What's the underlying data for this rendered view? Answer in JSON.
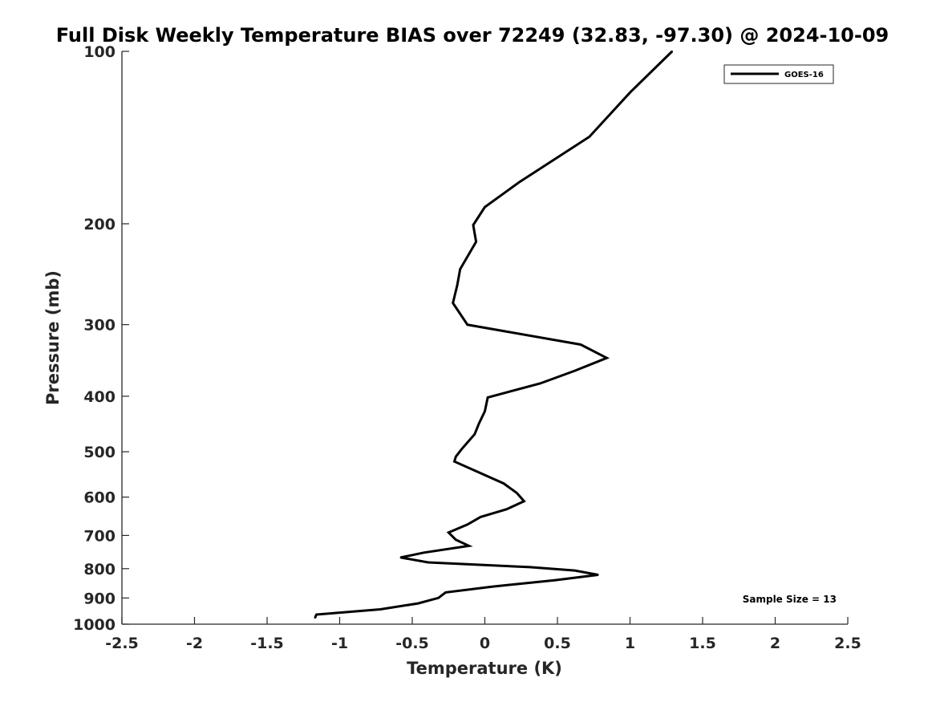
{
  "chart_data": {
    "type": "line",
    "title": "Full Disk Weekly Temperature BIAS over 72249 (32.83, -97.30) @ 2024-10-09",
    "xlabel": "Temperature (K)",
    "ylabel": "Pressure (mb)",
    "xlim": [
      -2.5,
      2.5
    ],
    "ylim": [
      100,
      1000
    ],
    "yscale": "log",
    "y_reversed": true,
    "grid": false,
    "x_ticks": [
      "-2.5",
      "-2",
      "-1.5",
      "-1",
      "-0.5",
      "0",
      "0.5",
      "1",
      "1.5",
      "2",
      "2.5"
    ],
    "y_ticks": [
      "100",
      "200",
      "300",
      "400",
      "500",
      "600",
      "700",
      "800",
      "900",
      "1000"
    ],
    "legend_position": "top-right",
    "annotation": "Sample Size = 13",
    "series": [
      {
        "name": "GOES-16",
        "color": "#000000",
        "points": [
          {
            "x": 1.29,
            "y": 100
          },
          {
            "x": 1.0,
            "y": 118
          },
          {
            "x": 0.72,
            "y": 141
          },
          {
            "x": 0.24,
            "y": 169
          },
          {
            "x": 0.0,
            "y": 187
          },
          {
            "x": -0.08,
            "y": 201
          },
          {
            "x": -0.06,
            "y": 215
          },
          {
            "x": -0.17,
            "y": 240
          },
          {
            "x": -0.19,
            "y": 256
          },
          {
            "x": -0.22,
            "y": 275
          },
          {
            "x": -0.12,
            "y": 300
          },
          {
            "x": 0.66,
            "y": 325
          },
          {
            "x": 0.84,
            "y": 343
          },
          {
            "x": 0.62,
            "y": 361
          },
          {
            "x": 0.38,
            "y": 380
          },
          {
            "x": 0.02,
            "y": 402
          },
          {
            "x": 0.0,
            "y": 425
          },
          {
            "x": -0.04,
            "y": 446
          },
          {
            "x": -0.07,
            "y": 466
          },
          {
            "x": -0.16,
            "y": 495
          },
          {
            "x": -0.2,
            "y": 510
          },
          {
            "x": -0.21,
            "y": 520
          },
          {
            "x": 0.13,
            "y": 568
          },
          {
            "x": 0.22,
            "y": 590
          },
          {
            "x": 0.27,
            "y": 610
          },
          {
            "x": 0.15,
            "y": 630
          },
          {
            "x": -0.03,
            "y": 650
          },
          {
            "x": -0.12,
            "y": 670
          },
          {
            "x": -0.25,
            "y": 692
          },
          {
            "x": -0.2,
            "y": 712
          },
          {
            "x": -0.11,
            "y": 730
          },
          {
            "x": -0.42,
            "y": 750
          },
          {
            "x": -0.58,
            "y": 765
          },
          {
            "x": -0.39,
            "y": 780
          },
          {
            "x": 0.31,
            "y": 795
          },
          {
            "x": 0.62,
            "y": 806
          },
          {
            "x": 0.78,
            "y": 820
          },
          {
            "x": 0.48,
            "y": 838
          },
          {
            "x": 0.05,
            "y": 860
          },
          {
            "x": -0.27,
            "y": 880
          },
          {
            "x": -0.32,
            "y": 900
          },
          {
            "x": -0.46,
            "y": 920
          },
          {
            "x": -0.72,
            "y": 942
          },
          {
            "x": -1.16,
            "y": 962
          },
          {
            "x": -1.17,
            "y": 975
          }
        ]
      }
    ]
  }
}
